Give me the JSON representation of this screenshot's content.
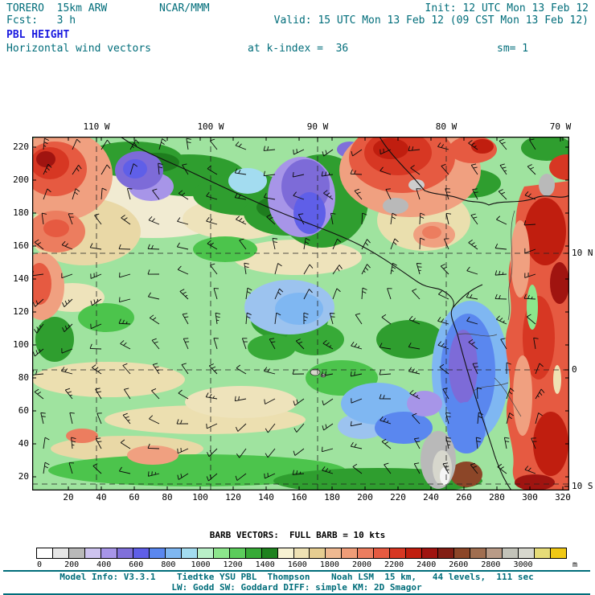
{
  "header": {
    "model": "TORERO  15km ARW",
    "org": "NCAR/MMM",
    "init": "Init: 12 UTC Mon 13 Feb 12",
    "fcst": "Fcst:   3 h",
    "valid": "Valid: 15 UTC Mon 13 Feb 12 (09 CST Mon 13 Feb 12)",
    "field": "PBL HEIGHT",
    "overlay": "Horizontal wind vectors",
    "level": "at k-index =  36",
    "smooth": "sm= 1"
  },
  "axes": {
    "top": [
      "110 W",
      "100 W",
      "90 W",
      "80 W",
      "70 W"
    ],
    "left": [
      "220",
      "200",
      "180",
      "160",
      "140",
      "120",
      "100",
      "80",
      "60",
      "40",
      "20"
    ],
    "bottom": [
      "20",
      "40",
      "60",
      "80",
      "100",
      "120",
      "140",
      "160",
      "180",
      "200",
      "220",
      "240",
      "260",
      "280",
      "300",
      "320"
    ],
    "right": [
      "10 N",
      "0",
      "10 S"
    ]
  },
  "legend": {
    "barb_note": "BARB VECTORS:  FULL BARB = 10 kts",
    "unit": "m",
    "ticks": [
      "0",
      "200",
      "400",
      "600",
      "800",
      "1000",
      "1200",
      "1400",
      "1600",
      "1800",
      "2000",
      "2200",
      "2400",
      "2600",
      "2800",
      "3000"
    ],
    "colors": [
      "#ffffff",
      "#e6e6e6",
      "#b9b9b9",
      "#cdc3ef",
      "#a795e8",
      "#8070da",
      "#5f5fe8",
      "#5a87ef",
      "#7fb7f2",
      "#a3dcf0",
      "#b9f0c8",
      "#8ce68c",
      "#5ccc5c",
      "#37aa37",
      "#1e821e",
      "#f7f2d2",
      "#efe2b4",
      "#e6cd91",
      "#efb991",
      "#f09d78",
      "#ec7d5f",
      "#e65a41",
      "#d73723",
      "#c01e0f",
      "#a01410",
      "#821e14",
      "#8c4628",
      "#a06e50",
      "#b99b87",
      "#c3c3b9",
      "#d7d7cd",
      "#e6dc78",
      "#f0c814"
    ]
  },
  "footer": {
    "line1": "Model Info: V3.3.1    Tiedtke YSU PBL  Thompson    Noah LSM  15 km,   44 levels,  111 sec",
    "line2": "LW: Godd SW: Goddard DIFF: simple KM: 2D Smagor"
  },
  "colors": {
    "header_text": "#006d7a",
    "field_title": "#1a1ae0",
    "footer_text": "#006d7a"
  }
}
